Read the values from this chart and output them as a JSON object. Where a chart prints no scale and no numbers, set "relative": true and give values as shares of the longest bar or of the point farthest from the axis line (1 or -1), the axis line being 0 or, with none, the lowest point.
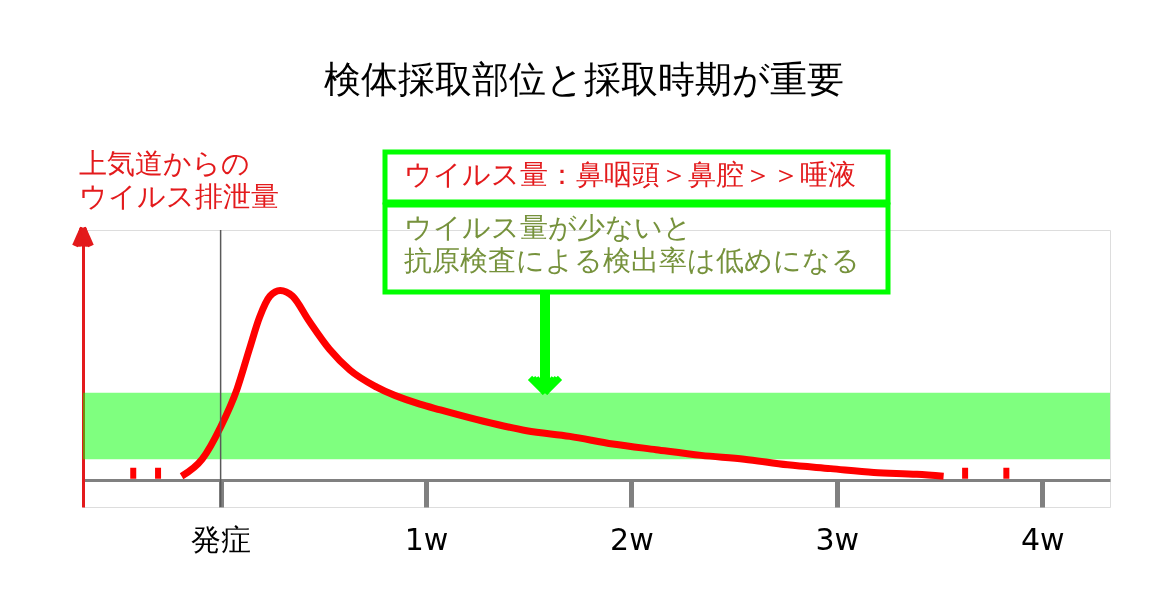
{
  "chart_data": {
    "type": "line",
    "title": "検体採取部位と採取時期が重要",
    "ylabel": "上気道からのウイルス排泄量",
    "annotations": [
      "ウイルス量：鼻咽頭＞鼻腔＞＞唾液",
      "ウイルス量が少ないと",
      "抗原検査による検出率は低めになる"
    ],
    "relative": true,
    "tick_labels": "x",
    "xlim": [
      -0.67,
      4.33
    ],
    "xticks": [
      {
        "value": 0,
        "label": "発症"
      },
      {
        "value": 1,
        "label": "1w"
      },
      {
        "value": 2,
        "label": "2w"
      },
      {
        "value": 3,
        "label": "3w"
      },
      {
        "value": 4,
        "label": "4w"
      }
    ],
    "series": [
      {
        "color": "#ff0000",
        "x": [
          -0.19,
          -0.09,
          0.0,
          0.08,
          0.14,
          0.19,
          0.24,
          0.29,
          0.35,
          0.43,
          0.53,
          0.63,
          0.76,
          0.97,
          1.07,
          1.28,
          1.49,
          1.7,
          1.91,
          2.12,
          2.34,
          2.55,
          2.76,
          2.97,
          3.18,
          3.39,
          3.52
        ],
        "values": [
          0.02,
          0.11,
          0.28,
          0.48,
          0.69,
          0.86,
          0.97,
          1.0,
          0.97,
          0.84,
          0.69,
          0.58,
          0.49,
          0.4,
          0.37,
          0.31,
          0.26,
          0.23,
          0.19,
          0.16,
          0.13,
          0.11,
          0.08,
          0.06,
          0.04,
          0.03,
          0.02
        ]
      },
      {
        "color": "#ff0000",
        "x": [
          -0.44,
          -0.29
        ],
        "values": [
          0.035,
          0.035
        ],
        "line_style": "dotted"
      },
      {
        "color": "#ff0000",
        "x": [
          3.61,
          3.84
        ],
        "values": [
          0.035,
          0.035
        ],
        "line_style": "dotted"
      }
    ],
    "ref_lines": [
      {
        "axis": "x",
        "value": 0,
        "color": "#595959"
      }
    ],
    "bands": [
      {
        "axis": "y",
        "from": 0.11,
        "to": 0.46,
        "color": "#00ff00"
      }
    ]
  }
}
